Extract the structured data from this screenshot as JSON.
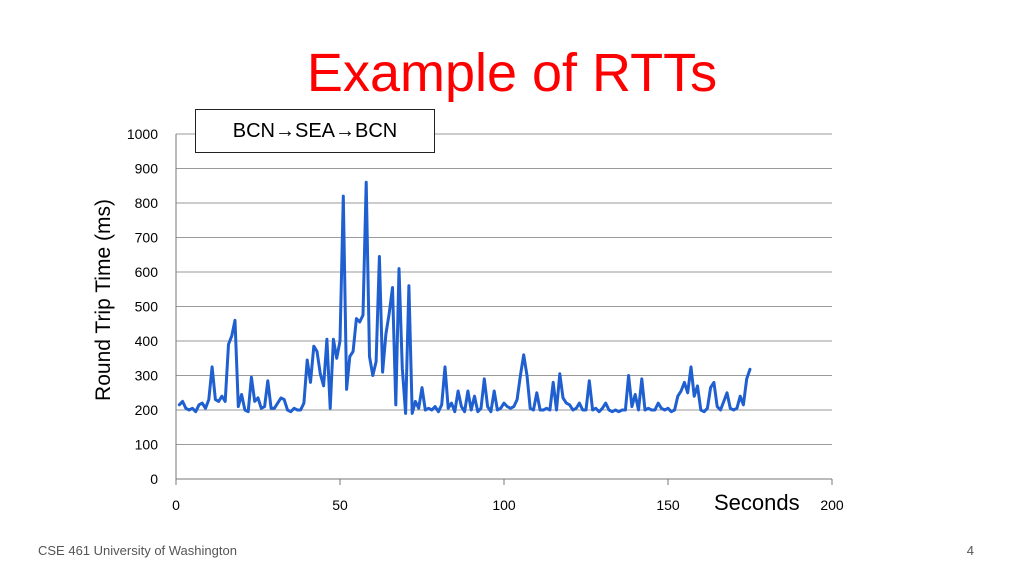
{
  "slide": {
    "title": "Example of RTTs",
    "footer": "CSE 461 University of Washington",
    "page_number": "4"
  },
  "annotation": {
    "parts": [
      "BCN",
      "SEA",
      "BCN"
    ],
    "arrow": "→"
  },
  "chart_data": {
    "type": "line",
    "title": "",
    "xlabel": "Seconds",
    "ylabel": "Round Trip Time (ms)",
    "xlim": [
      0,
      200
    ],
    "ylim": [
      0,
      1000
    ],
    "xticks": [
      0,
      50,
      100,
      150,
      200
    ],
    "yticks": [
      0,
      100,
      200,
      300,
      400,
      500,
      600,
      700,
      800,
      900,
      1000
    ],
    "grid": "horizontal",
    "series": [
      {
        "color": "#1f5fd0",
        "points": [
          [
            1,
            215
          ],
          [
            2,
            225
          ],
          [
            3,
            205
          ],
          [
            4,
            200
          ],
          [
            5,
            205
          ],
          [
            6,
            195
          ],
          [
            7,
            215
          ],
          [
            8,
            220
          ],
          [
            9,
            205
          ],
          [
            10,
            230
          ],
          [
            11,
            325
          ],
          [
            12,
            230
          ],
          [
            13,
            225
          ],
          [
            14,
            240
          ],
          [
            15,
            225
          ],
          [
            16,
            390
          ],
          [
            17,
            415
          ],
          [
            18,
            460
          ],
          [
            19,
            210
          ],
          [
            20,
            245
          ],
          [
            21,
            200
          ],
          [
            22,
            195
          ],
          [
            23,
            295
          ],
          [
            24,
            225
          ],
          [
            25,
            235
          ],
          [
            26,
            205
          ],
          [
            27,
            210
          ],
          [
            28,
            285
          ],
          [
            29,
            205
          ],
          [
            30,
            205
          ],
          [
            31,
            220
          ],
          [
            32,
            235
          ],
          [
            33,
            230
          ],
          [
            34,
            200
          ],
          [
            35,
            195
          ],
          [
            36,
            205
          ],
          [
            37,
            200
          ],
          [
            38,
            200
          ],
          [
            39,
            220
          ],
          [
            40,
            345
          ],
          [
            41,
            280
          ],
          [
            42,
            385
          ],
          [
            43,
            370
          ],
          [
            44,
            305
          ],
          [
            45,
            270
          ],
          [
            46,
            405
          ],
          [
            47,
            205
          ],
          [
            48,
            405
          ],
          [
            49,
            350
          ],
          [
            50,
            400
          ],
          [
            51,
            820
          ],
          [
            52,
            260
          ],
          [
            53,
            355
          ],
          [
            54,
            370
          ],
          [
            55,
            465
          ],
          [
            56,
            455
          ],
          [
            57,
            475
          ],
          [
            58,
            860
          ],
          [
            59,
            355
          ],
          [
            60,
            300
          ],
          [
            61,
            340
          ],
          [
            62,
            645
          ],
          [
            63,
            310
          ],
          [
            64,
            420
          ],
          [
            65,
            480
          ],
          [
            66,
            555
          ],
          [
            67,
            215
          ],
          [
            68,
            610
          ],
          [
            69,
            320
          ],
          [
            70,
            190
          ],
          [
            71,
            560
          ],
          [
            72,
            190
          ],
          [
            73,
            225
          ],
          [
            74,
            205
          ],
          [
            75,
            265
          ],
          [
            76,
            200
          ],
          [
            77,
            205
          ],
          [
            78,
            200
          ],
          [
            79,
            210
          ],
          [
            80,
            195
          ],
          [
            81,
            215
          ],
          [
            82,
            325
          ],
          [
            83,
            205
          ],
          [
            84,
            220
          ],
          [
            85,
            195
          ],
          [
            86,
            255
          ],
          [
            87,
            210
          ],
          [
            88,
            195
          ],
          [
            89,
            255
          ],
          [
            90,
            200
          ],
          [
            91,
            240
          ],
          [
            92,
            195
          ],
          [
            93,
            205
          ],
          [
            94,
            290
          ],
          [
            95,
            210
          ],
          [
            96,
            195
          ],
          [
            97,
            255
          ],
          [
            98,
            200
          ],
          [
            99,
            205
          ],
          [
            100,
            220
          ],
          [
            101,
            210
          ],
          [
            102,
            205
          ],
          [
            103,
            210
          ],
          [
            104,
            230
          ],
          [
            105,
            300
          ],
          [
            106,
            360
          ],
          [
            107,
            300
          ],
          [
            108,
            205
          ],
          [
            109,
            200
          ],
          [
            110,
            250
          ],
          [
            111,
            200
          ],
          [
            112,
            200
          ],
          [
            113,
            205
          ],
          [
            114,
            200
          ],
          [
            115,
            280
          ],
          [
            116,
            200
          ],
          [
            117,
            305
          ],
          [
            118,
            235
          ],
          [
            119,
            220
          ],
          [
            120,
            215
          ],
          [
            121,
            200
          ],
          [
            122,
            205
          ],
          [
            123,
            220
          ],
          [
            124,
            200
          ],
          [
            125,
            200
          ],
          [
            126,
            285
          ],
          [
            127,
            200
          ],
          [
            128,
            205
          ],
          [
            129,
            195
          ],
          [
            130,
            205
          ],
          [
            131,
            220
          ],
          [
            132,
            200
          ],
          [
            133,
            195
          ],
          [
            134,
            200
          ],
          [
            135,
            195
          ],
          [
            136,
            200
          ],
          [
            137,
            200
          ],
          [
            138,
            300
          ],
          [
            139,
            210
          ],
          [
            140,
            245
          ],
          [
            141,
            200
          ],
          [
            142,
            290
          ],
          [
            143,
            200
          ],
          [
            144,
            205
          ],
          [
            145,
            200
          ],
          [
            146,
            200
          ],
          [
            147,
            220
          ],
          [
            148,
            205
          ],
          [
            149,
            200
          ],
          [
            150,
            205
          ],
          [
            151,
            195
          ],
          [
            152,
            200
          ],
          [
            153,
            240
          ],
          [
            154,
            255
          ],
          [
            155,
            280
          ],
          [
            156,
            250
          ],
          [
            157,
            325
          ],
          [
            158,
            240
          ],
          [
            159,
            270
          ],
          [
            160,
            200
          ],
          [
            161,
            195
          ],
          [
            162,
            205
          ],
          [
            163,
            265
          ],
          [
            164,
            280
          ],
          [
            165,
            210
          ],
          [
            166,
            200
          ],
          [
            167,
            225
          ],
          [
            168,
            250
          ],
          [
            169,
            205
          ],
          [
            170,
            200
          ],
          [
            171,
            205
          ],
          [
            172,
            240
          ],
          [
            173,
            215
          ],
          [
            174,
            290
          ],
          [
            175,
            318
          ]
        ]
      }
    ]
  }
}
